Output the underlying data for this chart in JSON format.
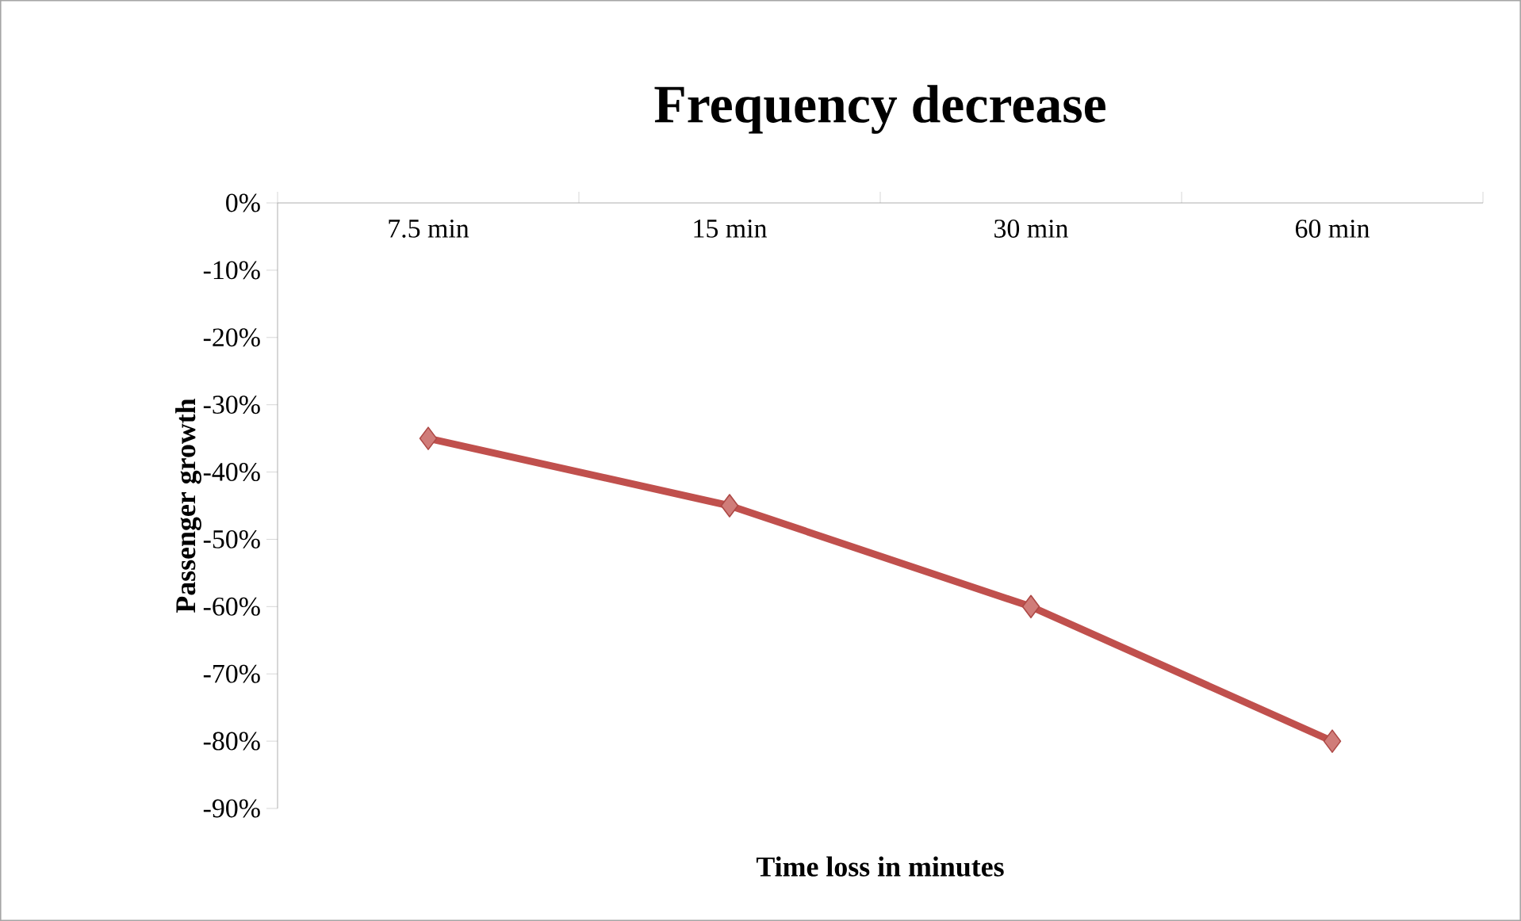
{
  "chart_data": {
    "type": "line",
    "title": "Frequency decrease",
    "xlabel": "Time loss in minutes",
    "ylabel": "Passenger growth",
    "categories": [
      "7.5 min",
      "15 min",
      "30 min",
      "60 min"
    ],
    "series": [
      {
        "color": "#c0504d",
        "values": [
          -35,
          -45,
          -60,
          -80
        ]
      }
    ],
    "marker": "diamond",
    "ylim": [
      -90,
      0
    ],
    "yticks": [
      {
        "value": -90,
        "label": "-90%"
      },
      {
        "value": -80,
        "label": "-80%"
      },
      {
        "value": -70,
        "label": "-70%"
      },
      {
        "value": -60,
        "label": "-60%"
      },
      {
        "value": -50,
        "label": "-50%"
      },
      {
        "value": -40,
        "label": "-40%"
      },
      {
        "value": -30,
        "label": "-30%"
      },
      {
        "value": -20,
        "label": "-20%"
      },
      {
        "value": -10,
        "label": "-10%"
      },
      {
        "value": 0,
        "label": "0%"
      }
    ]
  }
}
